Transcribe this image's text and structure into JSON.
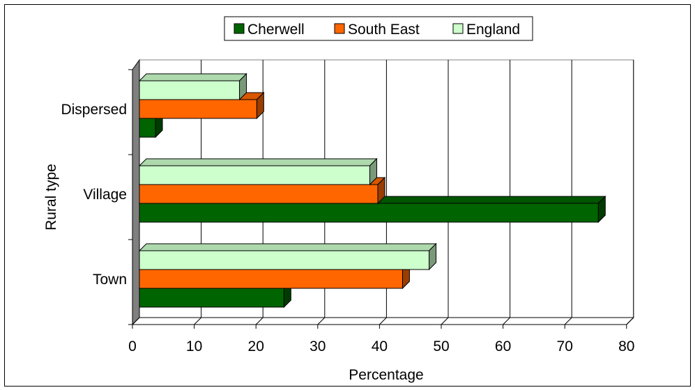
{
  "chart_data": {
    "type": "bar",
    "orientation": "horizontal",
    "style": "3d",
    "categories": [
      "Town",
      "Village",
      "Dispersed"
    ],
    "series": [
      {
        "name": "Cherwell",
        "values": [
          23.4,
          74.3,
          2.6
        ]
      },
      {
        "name": "South East",
        "values": [
          42.6,
          38.6,
          19.0
        ]
      },
      {
        "name": "England",
        "values": [
          46.9,
          37.3,
          16.2
        ]
      }
    ],
    "colors": {
      "Cherwell": "#006400",
      "South East": "#ff6600",
      "England": "#ccffcc",
      "wall": "#808080"
    },
    "xlabel": "Percentage",
    "ylabel": "Rural type",
    "xlim": [
      0,
      80
    ],
    "xticks": [
      "0",
      "10",
      "20",
      "30",
      "40",
      "50",
      "60",
      "70",
      "80"
    ],
    "grid": true,
    "legend_position": "top"
  }
}
